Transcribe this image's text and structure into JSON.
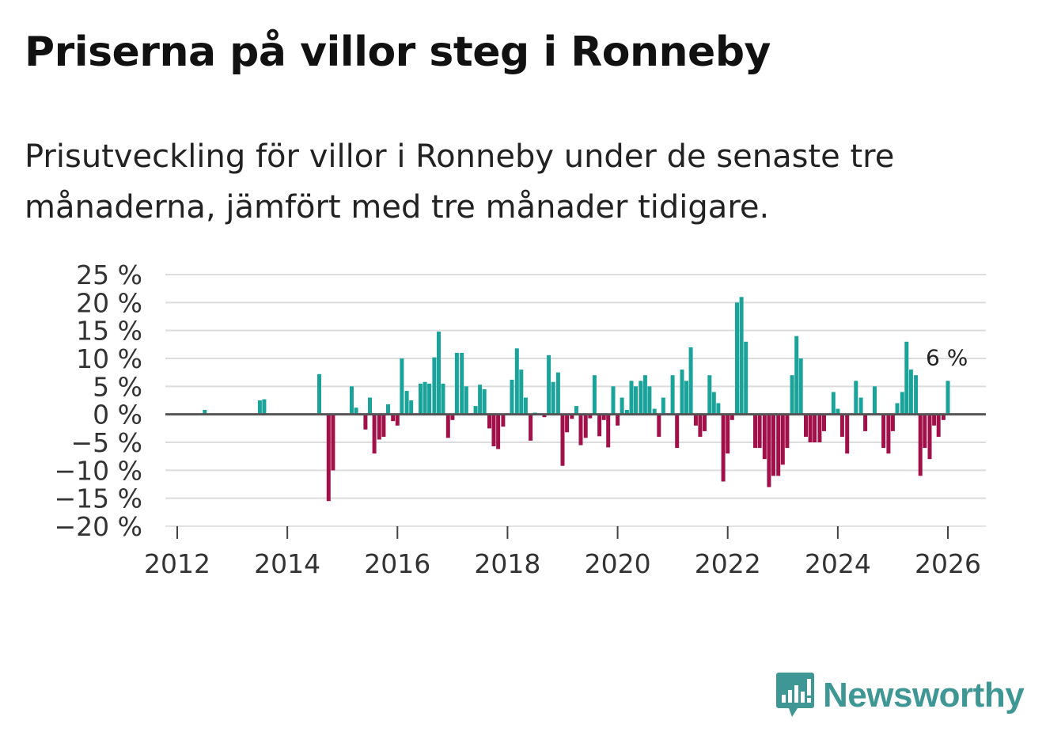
{
  "chart_data": {
    "type": "bar",
    "title": "Priserna på villor steg i Ronneby",
    "subtitle": "Prisutveckling för villor i Ronneby under de senaste tre månaderna, jämfört med tre månader tidigare.",
    "xlabel": "",
    "ylabel": "",
    "ylim": [
      -20,
      25
    ],
    "xlim": [
      2011.8,
      2026.7
    ],
    "yticks": [
      25,
      20,
      15,
      10,
      5,
      0,
      -5,
      -10,
      -15,
      -20
    ],
    "ytick_labels": [
      "25 %",
      "20 %",
      "15 %",
      "10 %",
      "5 %",
      "0 %",
      "−5 %",
      "−10 %",
      "−15 %",
      "−20 %"
    ],
    "xticks": [
      2012,
      2014,
      2016,
      2018,
      2020,
      2022,
      2024,
      2026
    ],
    "xtick_labels": [
      "2012",
      "2014",
      "2016",
      "2018",
      "2020",
      "2022",
      "2024",
      "2026"
    ],
    "positive_color": "#1aa39a",
    "negative_color": "#a2104a",
    "grid": true,
    "annotation": {
      "label": "6 %",
      "x": 2026.0,
      "y": 6
    },
    "series": [
      {
        "name": "Prisutveckling",
        "x": [
          2012.5,
          2013.5,
          2013.58,
          2014.58,
          2014.75,
          2014.83,
          2015.17,
          2015.25,
          2015.42,
          2015.5,
          2015.58,
          2015.67,
          2015.75,
          2015.83,
          2015.92,
          2016.0,
          2016.08,
          2016.17,
          2016.25,
          2016.42,
          2016.5,
          2016.58,
          2016.67,
          2016.75,
          2016.83,
          2016.92,
          2017.0,
          2017.08,
          2017.17,
          2017.25,
          2017.42,
          2017.5,
          2017.58,
          2017.67,
          2017.75,
          2017.83,
          2017.92,
          2018.08,
          2018.17,
          2018.25,
          2018.33,
          2018.42,
          2018.5,
          2018.67,
          2018.75,
          2018.83,
          2018.92,
          2019.0,
          2019.08,
          2019.17,
          2019.25,
          2019.33,
          2019.42,
          2019.5,
          2019.58,
          2019.67,
          2019.75,
          2019.83,
          2019.92,
          2020.0,
          2020.08,
          2020.17,
          2020.25,
          2020.33,
          2020.42,
          2020.5,
          2020.58,
          2020.67,
          2020.75,
          2020.83,
          2020.92,
          2021.0,
          2021.08,
          2021.17,
          2021.25,
          2021.33,
          2021.42,
          2021.5,
          2021.58,
          2021.67,
          2021.75,
          2021.83,
          2021.92,
          2022.0,
          2022.08,
          2022.17,
          2022.25,
          2022.33,
          2022.5,
          2022.58,
          2022.67,
          2022.75,
          2022.83,
          2022.92,
          2023.0,
          2023.08,
          2023.17,
          2023.25,
          2023.33,
          2023.42,
          2023.5,
          2023.58,
          2023.67,
          2023.75,
          2023.92,
          2024.0,
          2024.08,
          2024.17,
          2024.33,
          2024.42,
          2024.5,
          2024.67,
          2024.83,
          2024.92,
          2025.0,
          2025.08,
          2025.17,
          2025.25,
          2025.33,
          2025.42,
          2025.5,
          2025.58,
          2025.67,
          2025.75,
          2025.83,
          2025.92,
          2026.0
        ],
        "values": [
          0.8,
          2.5,
          2.7,
          7.2,
          -15.5,
          -10,
          5,
          1.2,
          -2.7,
          3,
          -7,
          -4.5,
          -4,
          1.8,
          -1.2,
          -2,
          10,
          4.2,
          2.5,
          5.5,
          5.8,
          5.5,
          10.2,
          14.8,
          5.5,
          -4.2,
          -1,
          11,
          11,
          5,
          1.5,
          5.3,
          4.5,
          -2.5,
          -5.7,
          -6.2,
          -2.2,
          6.2,
          11.8,
          8,
          3,
          -4.7,
          0.3,
          -0.5,
          10.6,
          5.8,
          7.5,
          -9.2,
          -3.2,
          -0.8,
          1.5,
          -5.5,
          -4.2,
          -0.7,
          7,
          -3.9,
          -1,
          -5.9,
          5,
          -2,
          3,
          0.8,
          6,
          5,
          6,
          7,
          5,
          1,
          -4,
          3,
          0,
          7,
          -6,
          8,
          6,
          12,
          -2,
          -4,
          -3,
          7,
          4,
          2,
          -12,
          -7,
          -1,
          20,
          21,
          13,
          -6,
          -6,
          -8,
          -13,
          -11,
          -11,
          -9,
          -6,
          7,
          14,
          10,
          -4,
          -5,
          -5,
          -5,
          -3,
          4,
          1,
          -4,
          -7,
          6,
          3,
          -3,
          5,
          -6,
          -7,
          -3,
          2,
          4,
          13,
          8,
          7,
          -11,
          -6,
          -8,
          -2,
          -4,
          -1,
          6
        ]
      }
    ]
  },
  "brand": {
    "name": "Newsworthy",
    "color": "#3e9695"
  }
}
